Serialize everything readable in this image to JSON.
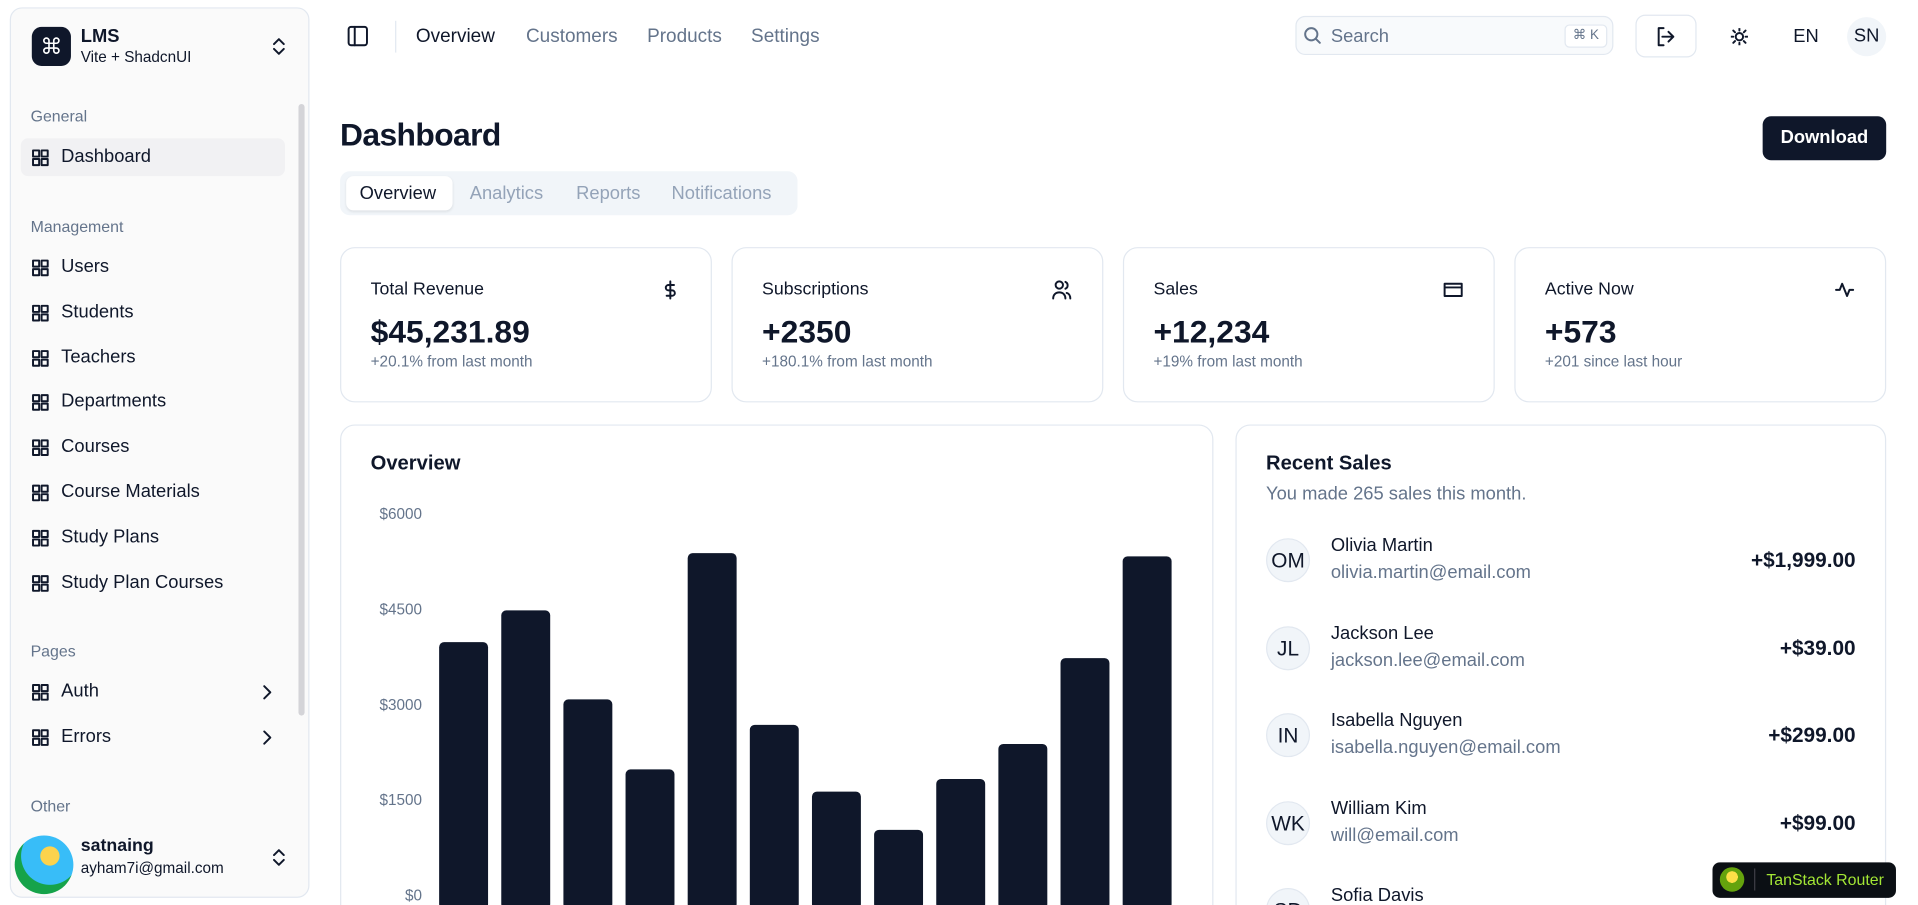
{
  "sidebar": {
    "header": {
      "title": "LMS",
      "subtitle": "Vite + ShadcnUI"
    },
    "groups": [
      {
        "label": "General",
        "items": [
          "Dashboard"
        ]
      },
      {
        "label": "Management",
        "items": [
          "Users",
          "Students",
          "Teachers",
          "Departments",
          "Courses",
          "Course Materials",
          "Study Plans",
          "Study Plan Courses"
        ]
      },
      {
        "label": "Pages",
        "items": [
          "Auth",
          "Errors"
        ]
      },
      {
        "label": "Other",
        "items": []
      }
    ],
    "user": {
      "name": "satnaing",
      "email": "ayham7i@gmail.com"
    }
  },
  "topbar": {
    "nav": [
      "Overview",
      "Customers",
      "Products",
      "Settings"
    ],
    "search": "Search",
    "shortcut": "⌘ K",
    "language": "EN",
    "avatar": "SN"
  },
  "page": {
    "title": "Dashboard",
    "download": "Download",
    "tabs": [
      "Overview",
      "Analytics",
      "Reports",
      "Notifications"
    ]
  },
  "stats": [
    {
      "title": "Total Revenue",
      "value": "$45,231.89",
      "note": "+20.1% from last month"
    },
    {
      "title": "Subscriptions",
      "value": "+2350",
      "note": "+180.1% from last month"
    },
    {
      "title": "Sales",
      "value": "+12,234",
      "note": "+19% from last month"
    },
    {
      "title": "Active Now",
      "value": "+573",
      "note": "+201 since last hour"
    }
  ],
  "chart_data": {
    "type": "bar",
    "title": "Overview",
    "values": [
      4000,
      4500,
      3100,
      2000,
      5400,
      2700,
      1650,
      1050,
      1850,
      2400,
      3750,
      5350
    ],
    "color": "#0f172a",
    "ylim": [
      0,
      6000
    ],
    "yticks": [
      {
        "value": 0,
        "label": "$0"
      },
      {
        "value": 1500,
        "label": "$1500"
      },
      {
        "value": 3000,
        "label": "$3000"
      },
      {
        "value": 4500,
        "label": "$4500"
      },
      {
        "value": 6000,
        "label": "$6000"
      }
    ]
  },
  "recent_sales": {
    "title": "Recent Sales",
    "subtitle": "You made 265 sales this month.",
    "rows": [
      {
        "initials": "OM",
        "name": "Olivia Martin",
        "email": "olivia.martin@email.com",
        "amount": "+$1,999.00"
      },
      {
        "initials": "JL",
        "name": "Jackson Lee",
        "email": "jackson.lee@email.com",
        "amount": "+$39.00"
      },
      {
        "initials": "IN",
        "name": "Isabella Nguyen",
        "email": "isabella.nguyen@email.com",
        "amount": "+$299.00"
      },
      {
        "initials": "WK",
        "name": "William Kim",
        "email": "will@email.com",
        "amount": "+$99.00"
      },
      {
        "initials": "SD",
        "name": "Sofia Davis"
      }
    ]
  },
  "devtools": {
    "label": "TanStack Router"
  }
}
